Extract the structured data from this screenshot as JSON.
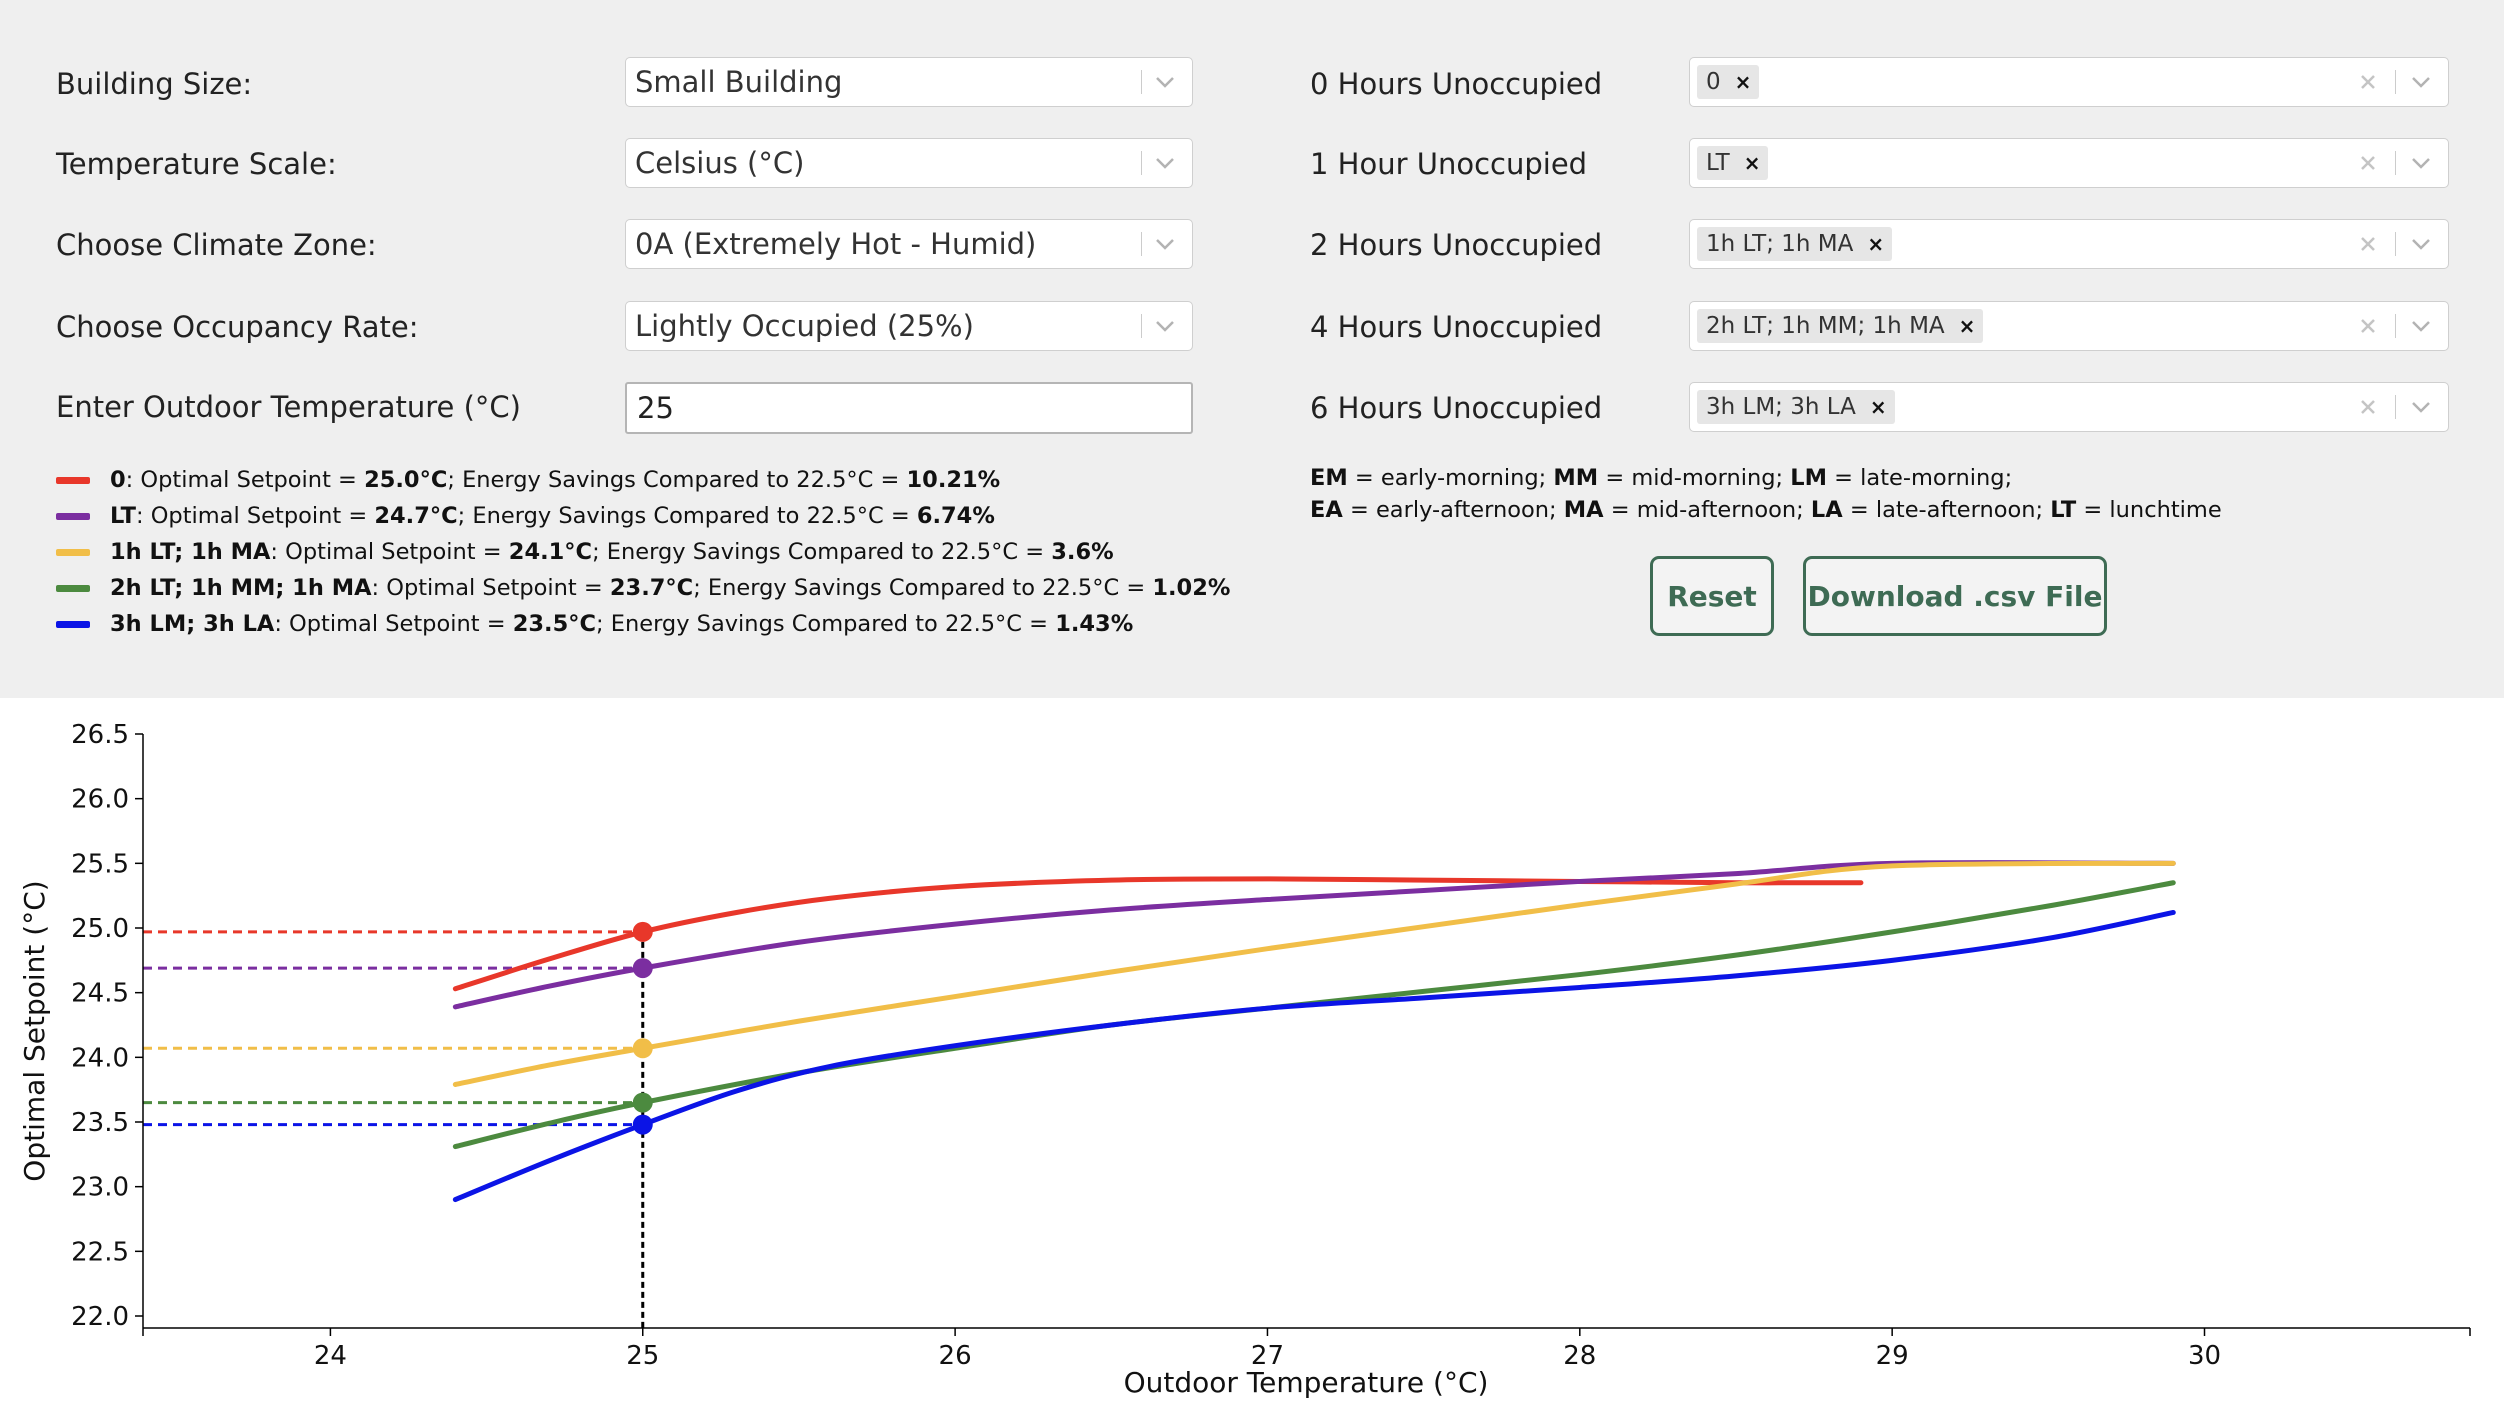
{
  "form": {
    "building_size": {
      "label": "Building Size:",
      "value": "Small Building"
    },
    "temperature_scale": {
      "label": "Temperature Scale:",
      "value": "Celsius (°C)"
    },
    "climate_zone": {
      "label": "Choose Climate Zone:",
      "value": "0A (Extremely Hot - Humid)"
    },
    "occupancy_rate": {
      "label": "Choose Occupancy Rate:",
      "value": "Lightly Occupied (25%)"
    },
    "outdoor_temp": {
      "label": "Enter Outdoor Temperature (°C)",
      "value": "25"
    }
  },
  "schedules": [
    {
      "label": "0 Hours Unoccupied",
      "chip": "0"
    },
    {
      "label": "1 Hour Unoccupied",
      "chip": "LT"
    },
    {
      "label": "2 Hours Unoccupied",
      "chip": "1h LT; 1h MA"
    },
    {
      "label": "4 Hours Unoccupied",
      "chip": "2h LT; 1h MM; 1h MA"
    },
    {
      "label": "6 Hours Unoccupied",
      "chip": "3h LM; 3h LA"
    }
  ],
  "legend": [
    {
      "name": "0",
      "setpoint": "25.0°C",
      "savings": "10.21%",
      "color": "#e8372a"
    },
    {
      "name": "LT",
      "setpoint": "24.7°C",
      "savings": "6.74%",
      "color": "#7b2ea0"
    },
    {
      "name": "1h LT; 1h MA",
      "setpoint": "24.1°C",
      "savings": "3.6%",
      "color": "#f1be48"
    },
    {
      "name": "2h LT; 1h MM; 1h MA",
      "setpoint": "23.7°C",
      "savings": "1.02%",
      "color": "#4c8a3f"
    },
    {
      "name": "3h LM; 3h LA",
      "setpoint": "23.5°C",
      "savings": "1.43%",
      "color": "#0b14e6"
    }
  ],
  "legend_text": {
    "mid": ": Optimal Setpoint = ",
    "mid2": "; Energy Savings Compared to 22.5°C = "
  },
  "abbreviations": {
    "line1": [
      {
        "k": "EM",
        "v": " = early-morning; "
      },
      {
        "k": "MM",
        "v": " = mid-morning; "
      },
      {
        "k": "LM",
        "v": " = late-morning;"
      }
    ],
    "line2": [
      {
        "k": "EA",
        "v": " = early-afternoon; "
      },
      {
        "k": "MA",
        "v": " = mid-afternoon; "
      },
      {
        "k": "LA",
        "v": " = late-afternoon; "
      },
      {
        "k": "LT",
        "v": " = lunchtime"
      }
    ]
  },
  "buttons": {
    "reset": "Reset",
    "download": "Download .csv File"
  },
  "chart_data": {
    "type": "line",
    "xlabel": "Outdoor Temperature (°C)",
    "ylabel": "Optimal Setpoint (°C)",
    "xlim": [
      23.4,
      30.85
    ],
    "ylim": [
      22.0,
      26.5
    ],
    "xticks": [
      24,
      25,
      26,
      27,
      28,
      29,
      30
    ],
    "yticks": [
      22.0,
      22.5,
      23.0,
      23.5,
      24.0,
      24.5,
      25.0,
      25.5,
      26.0,
      26.5
    ],
    "marker_x": 25,
    "series": [
      {
        "name": "0",
        "color": "#e8372a",
        "marker_y": 24.97,
        "x": [
          24.4,
          24.7,
          25.0,
          25.3,
          25.6,
          26.0,
          26.5,
          27.0,
          27.5,
          28.0,
          28.5,
          28.9
        ],
        "y": [
          24.53,
          24.76,
          24.97,
          25.12,
          25.23,
          25.32,
          25.37,
          25.38,
          25.37,
          25.36,
          25.35,
          25.35
        ]
      },
      {
        "name": "LT",
        "color": "#7b2ea0",
        "marker_y": 24.69,
        "x": [
          24.4,
          24.7,
          25.0,
          25.5,
          26.0,
          26.5,
          27.0,
          27.5,
          28.0,
          28.5,
          29.0,
          29.9
        ],
        "y": [
          24.39,
          24.55,
          24.69,
          24.89,
          25.03,
          25.14,
          25.22,
          25.29,
          25.36,
          25.42,
          25.5,
          25.5
        ]
      },
      {
        "name": "1h LT; 1h MA",
        "color": "#f1be48",
        "marker_y": 24.07,
        "x": [
          24.4,
          24.7,
          25.0,
          25.5,
          26.0,
          26.5,
          27.0,
          27.5,
          28.0,
          28.5,
          29.0,
          29.9
        ],
        "y": [
          23.79,
          23.94,
          24.07,
          24.28,
          24.47,
          24.66,
          24.84,
          25.01,
          25.18,
          25.34,
          25.48,
          25.5
        ]
      },
      {
        "name": "2h LT; 1h MM; 1h MA",
        "color": "#4c8a3f",
        "marker_y": 23.65,
        "x": [
          24.4,
          24.7,
          25.0,
          25.5,
          26.0,
          26.5,
          27.0,
          27.5,
          28.0,
          28.5,
          29.0,
          29.5,
          29.9
        ],
        "y": [
          23.31,
          23.49,
          23.65,
          23.88,
          24.07,
          24.25,
          24.38,
          24.51,
          24.64,
          24.79,
          24.97,
          25.17,
          25.35
        ]
      },
      {
        "name": "3h LM; 3h LA",
        "color": "#0b14e6",
        "marker_y": 23.48,
        "x": [
          24.4,
          24.7,
          25.0,
          25.3,
          25.6,
          26.0,
          26.5,
          27.0,
          27.5,
          28.0,
          28.5,
          29.0,
          29.5,
          29.9
        ],
        "y": [
          22.9,
          23.2,
          23.48,
          23.74,
          23.93,
          24.09,
          24.25,
          24.38,
          24.46,
          24.54,
          24.63,
          24.75,
          24.92,
          25.12
        ]
      }
    ]
  }
}
